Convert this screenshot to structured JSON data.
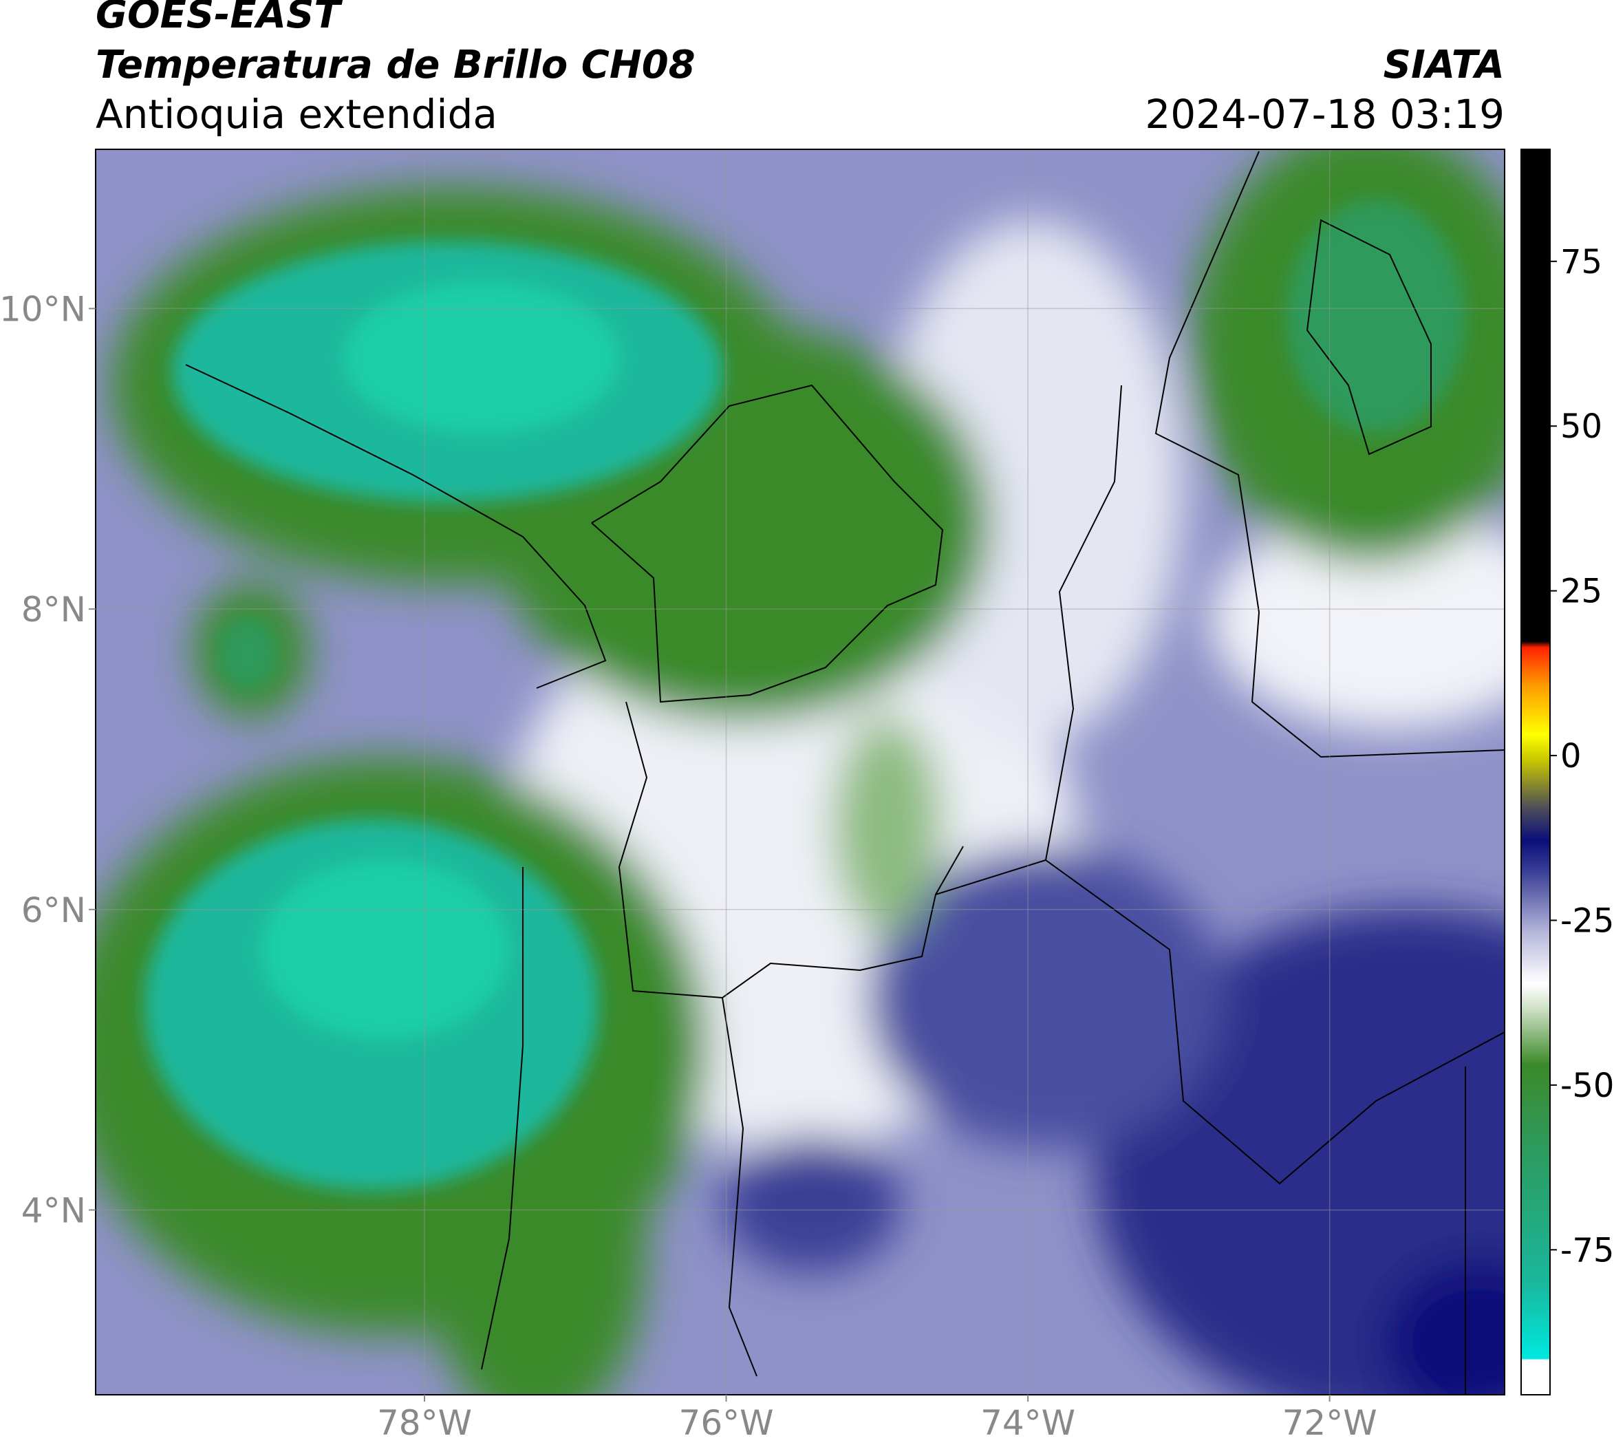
{
  "header": {
    "title": "GOES-EAST",
    "subtitle": "Temperatura de Brillo CH08",
    "region": "Antioquia extendida",
    "source": "SIATA",
    "timestamp": "2024-07-18 03:19"
  },
  "map": {
    "lon_range": [
      -80.18,
      -70.84
    ],
    "lat_range": [
      2.77,
      11.06
    ],
    "lon_ticks": [
      {
        "value": -78,
        "label": "78°W"
      },
      {
        "value": -76,
        "label": "76°W"
      },
      {
        "value": -74,
        "label": "74°W"
      },
      {
        "value": -72,
        "label": "72°W"
      }
    ],
    "lat_ticks": [
      {
        "value": 4,
        "label": "4°N"
      },
      {
        "value": 6,
        "label": "6°N"
      },
      {
        "value": 8,
        "label": "8°N"
      },
      {
        "value": 10,
        "label": "10°N"
      }
    ],
    "grid": true
  },
  "colorbar": {
    "range": [
      -97,
      92
    ],
    "ticks": [
      -75,
      -50,
      -25,
      0,
      25,
      50,
      75
    ]
  }
}
